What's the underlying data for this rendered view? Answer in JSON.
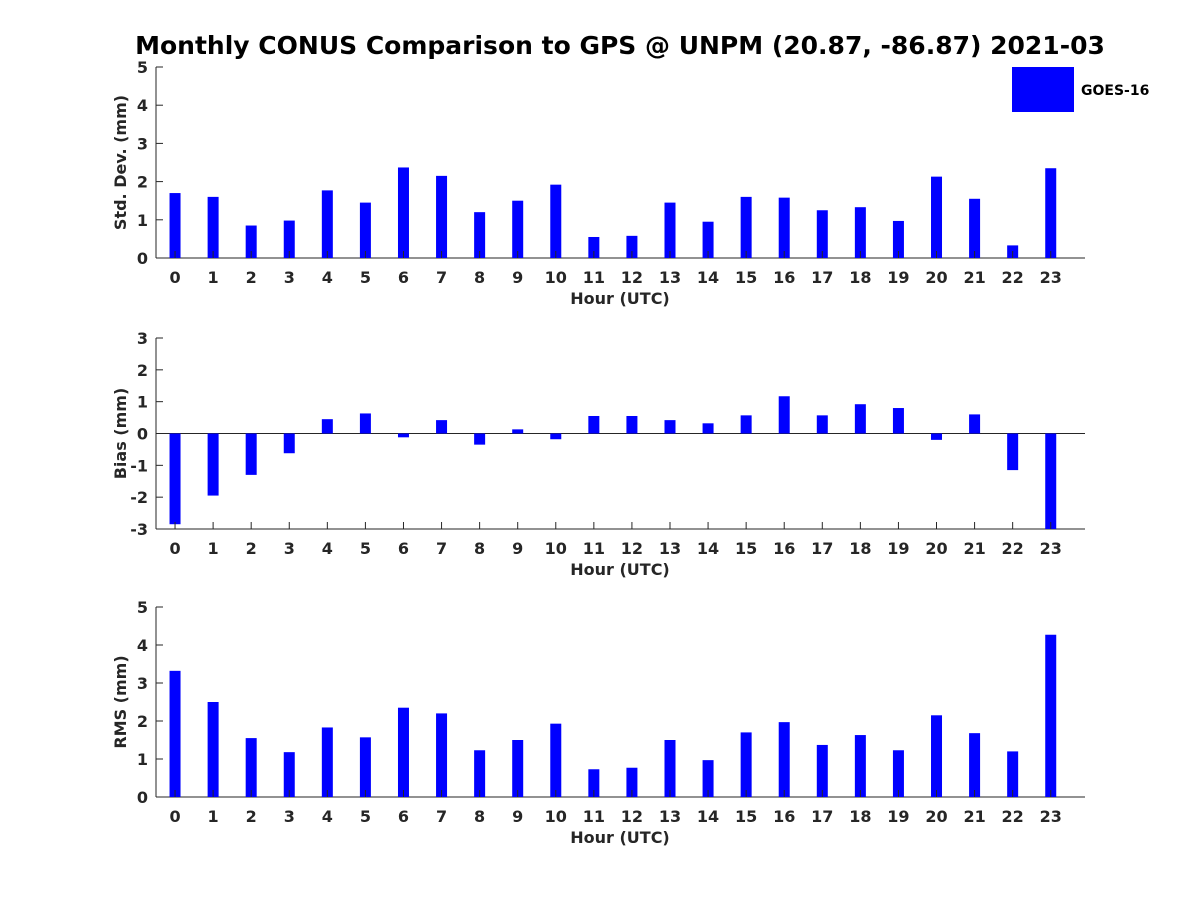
{
  "title": "Monthly CONUS Comparison to GPS @ UNPM (20.87, -86.87) 2021-03",
  "legend": {
    "label": "GOES-16",
    "color": "#0000ff",
    "placement": "top-right"
  },
  "chart_data": [
    {
      "type": "bar",
      "xlabel": "Hour (UTC)",
      "ylabel": "Std. Dev. (mm)",
      "categories": [
        "0",
        "1",
        "2",
        "3",
        "4",
        "5",
        "6",
        "7",
        "8",
        "9",
        "10",
        "11",
        "12",
        "13",
        "14",
        "15",
        "16",
        "17",
        "18",
        "19",
        "20",
        "21",
        "22",
        "23"
      ],
      "ylim": [
        0,
        5
      ],
      "yticks": [
        0,
        1,
        2,
        3,
        4,
        5
      ],
      "series": [
        {
          "name": "GOES-16",
          "color": "#0000ff",
          "values": [
            1.7,
            1.6,
            0.85,
            0.98,
            1.77,
            1.45,
            2.37,
            2.15,
            1.2,
            1.5,
            1.92,
            0.55,
            0.58,
            1.45,
            0.95,
            1.6,
            1.58,
            1.25,
            1.33,
            0.97,
            2.13,
            1.55,
            0.33,
            2.35
          ]
        }
      ]
    },
    {
      "type": "bar",
      "xlabel": "Hour (UTC)",
      "ylabel": "Bias (mm)",
      "categories": [
        "0",
        "1",
        "2",
        "3",
        "4",
        "5",
        "6",
        "7",
        "8",
        "9",
        "10",
        "11",
        "12",
        "13",
        "14",
        "15",
        "16",
        "17",
        "18",
        "19",
        "20",
        "21",
        "22",
        "23"
      ],
      "ylim": [
        -3,
        3
      ],
      "yticks": [
        -3,
        -2,
        -1,
        0,
        1,
        2,
        3
      ],
      "series": [
        {
          "name": "GOES-16",
          "color": "#0000ff",
          "values": [
            -2.85,
            -1.95,
            -1.3,
            -0.62,
            0.45,
            0.63,
            -0.12,
            0.42,
            -0.35,
            0.13,
            -0.18,
            0.55,
            0.55,
            0.42,
            0.32,
            0.57,
            1.17,
            0.57,
            0.92,
            0.8,
            -0.2,
            0.6,
            -1.15,
            -3.0
          ]
        }
      ]
    },
    {
      "type": "bar",
      "xlabel": "Hour (UTC)",
      "ylabel": "RMS (mm)",
      "categories": [
        "0",
        "1",
        "2",
        "3",
        "4",
        "5",
        "6",
        "7",
        "8",
        "9",
        "10",
        "11",
        "12",
        "13",
        "14",
        "15",
        "16",
        "17",
        "18",
        "19",
        "20",
        "21",
        "22",
        "23"
      ],
      "ylim": [
        0,
        5
      ],
      "yticks": [
        0,
        1,
        2,
        3,
        4,
        5
      ],
      "series": [
        {
          "name": "GOES-16",
          "color": "#0000ff",
          "values": [
            3.32,
            2.5,
            1.55,
            1.18,
            1.83,
            1.57,
            2.35,
            2.2,
            1.23,
            1.5,
            1.93,
            0.73,
            0.77,
            1.5,
            0.97,
            1.7,
            1.97,
            1.37,
            1.63,
            1.23,
            2.15,
            1.68,
            1.2,
            4.27
          ]
        }
      ]
    }
  ]
}
